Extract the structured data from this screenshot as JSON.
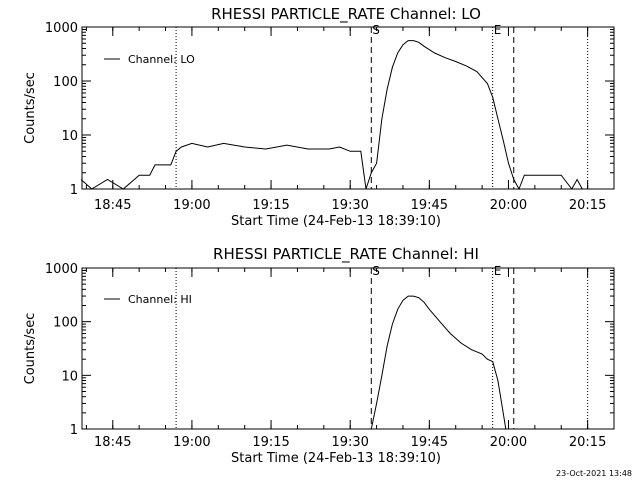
{
  "x_axis_label": "Start Time (24-Feb-13 18:39:10)",
  "y_axis_label": "Counts/sec",
  "footer_timestamp": "23-Oct-2021 13:48",
  "markers": {
    "start_label": "S",
    "end_label": "E"
  },
  "chart_data": [
    {
      "type": "line",
      "title": "RHESSI PARTICLE_RATE Channel: LO",
      "xlabel": "Start Time (24-Feb-13 18:39:10)",
      "ylabel": "Counts/sec",
      "y_scale": "log",
      "xlim": [
        "18:39:10",
        "20:20"
      ],
      "ylim": [
        1,
        1000
      ],
      "x_ticks": [
        "18:45",
        "19:00",
        "19:15",
        "19:30",
        "19:45",
        "20:00",
        "20:15"
      ],
      "y_ticks": [
        "1",
        "10",
        "100",
        "1000"
      ],
      "legend": {
        "entries": [
          "Channel: LO"
        ],
        "placement": "top-left"
      },
      "start_marker": "19:34",
      "end_marker": "20:01",
      "dotted_lines": [
        "18:57",
        "19:57",
        "20:15"
      ],
      "series": [
        {
          "name": "Channel: LO",
          "x": [
            "18:39",
            "18:41",
            "18:44",
            "18:47",
            "18:50",
            "18:52",
            "18:53",
            "18:56",
            "18:57",
            "18:58",
            "19:00",
            "19:03",
            "19:06",
            "19:10",
            "19:14",
            "19:18",
            "19:22",
            "19:26",
            "19:28",
            "19:30",
            "19:32",
            "19:33",
            "19:34",
            "19:35",
            "19:36",
            "19:37",
            "19:38",
            "19:39",
            "19:40",
            "19:41",
            "19:42",
            "19:43",
            "19:44",
            "19:46",
            "19:48",
            "19:50",
            "19:52",
            "19:54",
            "19:56",
            "19:57",
            "19:58",
            "19:59",
            "20:00",
            "20:01",
            "20:02",
            "20:03",
            "20:05",
            "20:08",
            "20:10",
            "20:12",
            "20:13",
            "20:14"
          ],
          "values": [
            1.5,
            1,
            1.5,
            1,
            1.8,
            1.8,
            2.8,
            2.8,
            5,
            6,
            7,
            6,
            7,
            6,
            5.5,
            6.5,
            5.5,
            5.5,
            6,
            5,
            5,
            1,
            2,
            3,
            20,
            70,
            180,
            330,
            470,
            560,
            560,
            520,
            440,
            330,
            270,
            230,
            190,
            150,
            90,
            50,
            20,
            8,
            3,
            1.5,
            1,
            1.8,
            1.8,
            1.8,
            1.8,
            1,
            1.5,
            1
          ]
        }
      ]
    },
    {
      "type": "line",
      "title": "RHESSI PARTICLE_RATE Channel: HI",
      "xlabel": "Start Time (24-Feb-13 18:39:10)",
      "ylabel": "Counts/sec",
      "y_scale": "log",
      "xlim": [
        "18:39:10",
        "20:20"
      ],
      "ylim": [
        1,
        1000
      ],
      "x_ticks": [
        "18:45",
        "19:00",
        "19:15",
        "19:30",
        "19:45",
        "20:00",
        "20:15"
      ],
      "y_ticks": [
        "1",
        "10",
        "100",
        "1000"
      ],
      "legend": {
        "entries": [
          "Channel: HI"
        ],
        "placement": "top-left"
      },
      "start_marker": "19:34",
      "end_marker": "20:01",
      "dotted_lines": [
        "18:57",
        "19:57",
        "20:15"
      ],
      "series": [
        {
          "name": "Channel: HI",
          "x": [
            "19:34",
            "19:35",
            "19:36",
            "19:37",
            "19:38",
            "19:39",
            "19:40",
            "19:41",
            "19:42",
            "19:43",
            "19:44",
            "19:45",
            "19:47",
            "19:49",
            "19:51",
            "19:53",
            "19:55",
            "19:56",
            "19:57",
            "19:58",
            "19:59",
            "19:59.5"
          ],
          "values": [
            1,
            3,
            10,
            35,
            90,
            170,
            250,
            300,
            300,
            280,
            230,
            170,
            100,
            60,
            40,
            30,
            25,
            20,
            18,
            8,
            2,
            1
          ]
        }
      ]
    }
  ]
}
